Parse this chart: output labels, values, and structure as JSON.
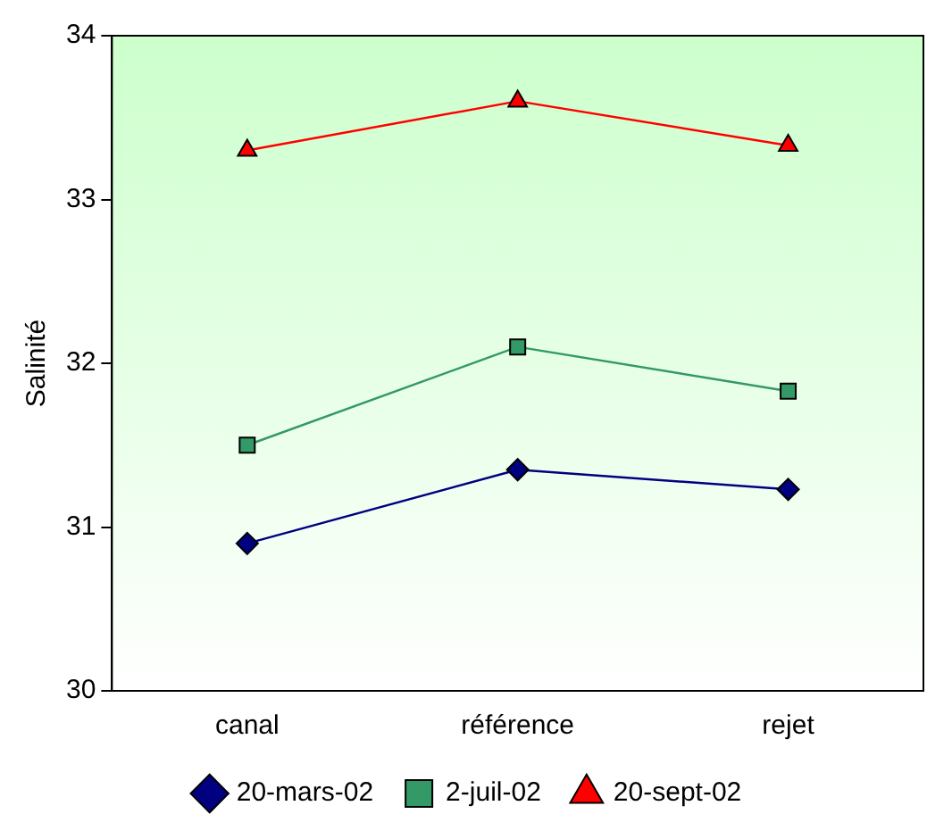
{
  "chart_data": {
    "type": "line",
    "ylabel": "Salinité",
    "categories": [
      "canal",
      "référence",
      "rejet"
    ],
    "series": [
      {
        "name": "20-mars-02",
        "color": "#000080",
        "marker": "diamond",
        "values": [
          30.9,
          31.35,
          31.23
        ]
      },
      {
        "name": "2-juil-02",
        "color": "#339966",
        "marker": "square",
        "values": [
          31.5,
          32.1,
          31.83
        ]
      },
      {
        "name": "20-sept-02",
        "color": "#ff0000",
        "marker": "triangle",
        "values": [
          33.3,
          33.6,
          33.33
        ]
      }
    ],
    "ylim": [
      30,
      34
    ],
    "yticks": [
      30,
      31,
      32,
      33,
      34
    ],
    "grid": false,
    "legend": "bottom"
  }
}
